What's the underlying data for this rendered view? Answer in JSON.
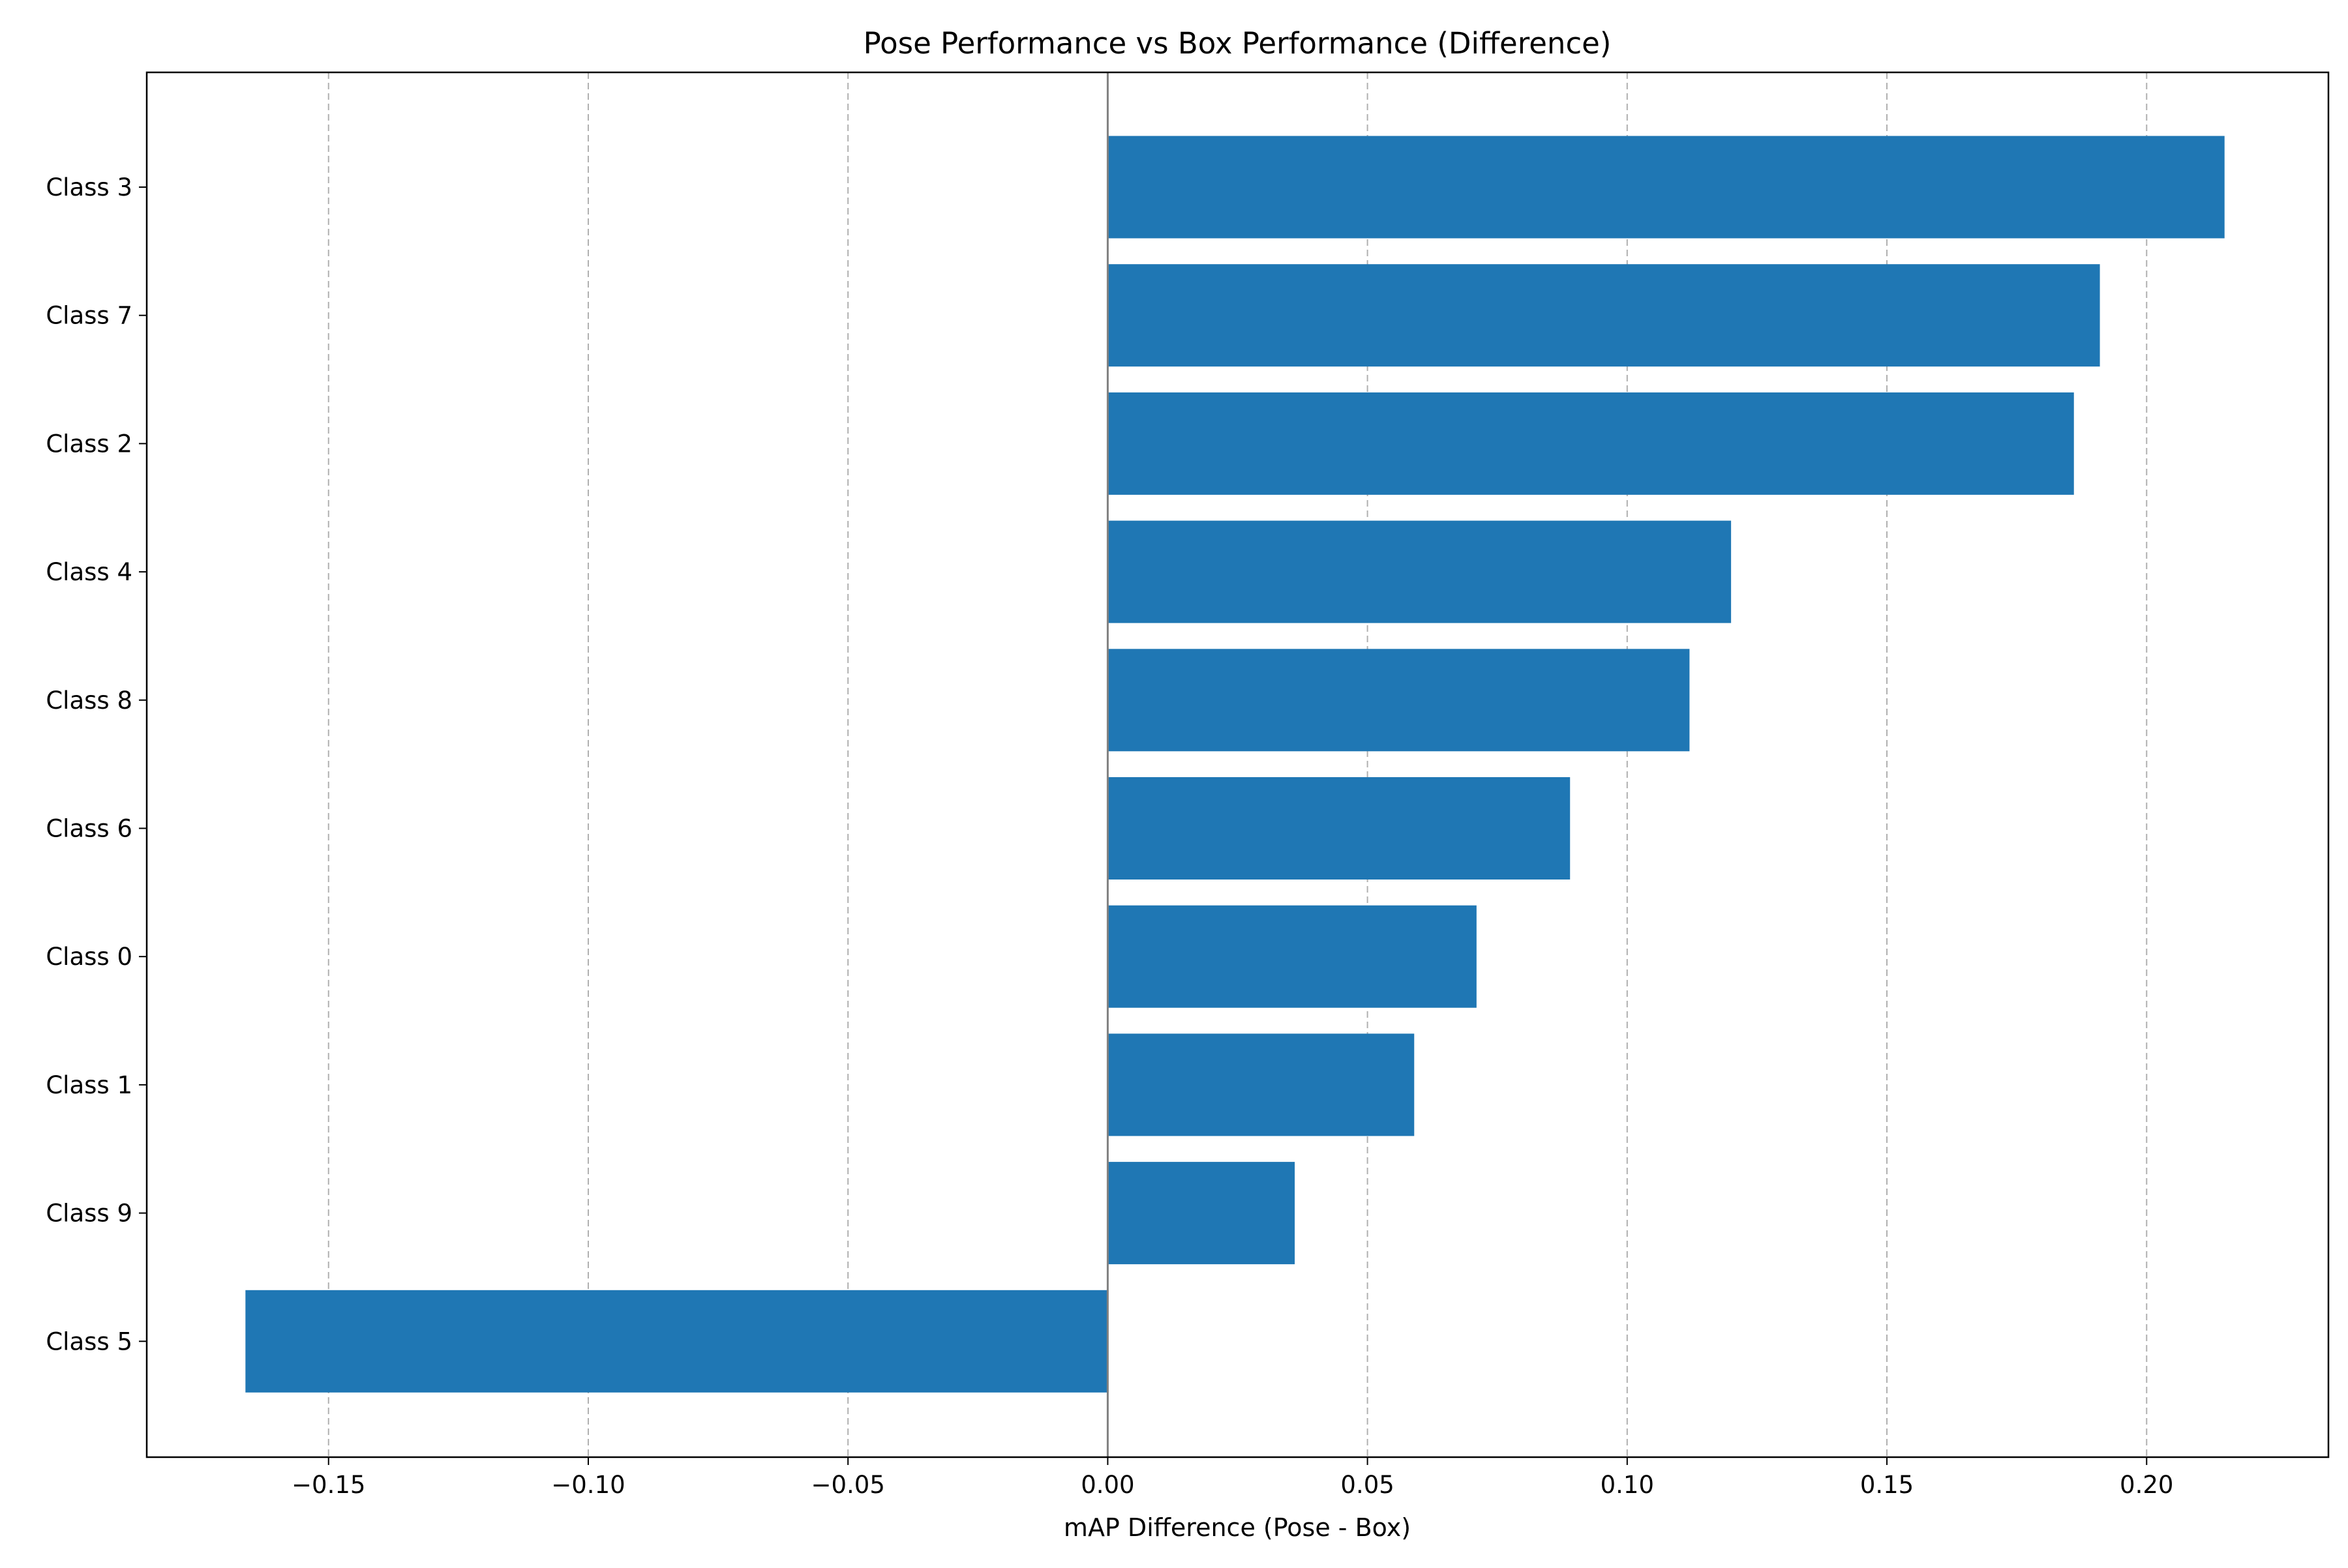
{
  "chart_data": {
    "type": "bar",
    "orientation": "horizontal",
    "title": "Pose Performance vs Box Performance (Difference)",
    "xlabel": "mAP Difference (Pose - Box)",
    "ylabel": "",
    "xlim": [
      -0.185,
      0.235
    ],
    "xticks": [
      -0.15,
      -0.1,
      -0.05,
      0.0,
      0.05,
      0.1,
      0.15,
      0.2
    ],
    "xtick_labels": [
      "−0.15",
      "−0.10",
      "−0.05",
      "0.00",
      "0.05",
      "0.10",
      "0.15",
      "0.20"
    ],
    "grid": "x-dashed",
    "zero_line": true,
    "bar_color": "#1f77b4",
    "categories": [
      "Class 3",
      "Class 7",
      "Class 2",
      "Class 4",
      "Class 8",
      "Class 6",
      "Class 0",
      "Class 1",
      "Class 9",
      "Class 5"
    ],
    "values": [
      0.215,
      0.191,
      0.186,
      0.12,
      0.112,
      0.089,
      0.071,
      0.059,
      0.036,
      -0.166
    ]
  }
}
